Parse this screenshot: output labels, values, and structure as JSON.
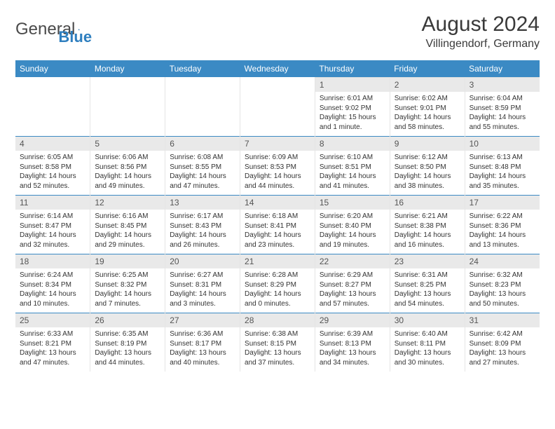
{
  "logo": {
    "text1": "General",
    "text2": "Blue"
  },
  "title": "August 2024",
  "location": "Villingendorf, Germany",
  "colors": {
    "header_bg": "#3b8ac4",
    "header_text": "#ffffff",
    "daynum_bg": "#e9e9e9",
    "border": "#e5e5e5",
    "logo_accent": "#2f7fbf"
  },
  "day_headers": [
    "Sunday",
    "Monday",
    "Tuesday",
    "Wednesday",
    "Thursday",
    "Friday",
    "Saturday"
  ],
  "weeks": [
    [
      null,
      null,
      null,
      null,
      {
        "n": "1",
        "sr": "Sunrise: 6:01 AM",
        "ss": "Sunset: 9:02 PM",
        "dl": "Daylight: 15 hours and 1 minute."
      },
      {
        "n": "2",
        "sr": "Sunrise: 6:02 AM",
        "ss": "Sunset: 9:01 PM",
        "dl": "Daylight: 14 hours and 58 minutes."
      },
      {
        "n": "3",
        "sr": "Sunrise: 6:04 AM",
        "ss": "Sunset: 8:59 PM",
        "dl": "Daylight: 14 hours and 55 minutes."
      }
    ],
    [
      {
        "n": "4",
        "sr": "Sunrise: 6:05 AM",
        "ss": "Sunset: 8:58 PM",
        "dl": "Daylight: 14 hours and 52 minutes."
      },
      {
        "n": "5",
        "sr": "Sunrise: 6:06 AM",
        "ss": "Sunset: 8:56 PM",
        "dl": "Daylight: 14 hours and 49 minutes."
      },
      {
        "n": "6",
        "sr": "Sunrise: 6:08 AM",
        "ss": "Sunset: 8:55 PM",
        "dl": "Daylight: 14 hours and 47 minutes."
      },
      {
        "n": "7",
        "sr": "Sunrise: 6:09 AM",
        "ss": "Sunset: 8:53 PM",
        "dl": "Daylight: 14 hours and 44 minutes."
      },
      {
        "n": "8",
        "sr": "Sunrise: 6:10 AM",
        "ss": "Sunset: 8:51 PM",
        "dl": "Daylight: 14 hours and 41 minutes."
      },
      {
        "n": "9",
        "sr": "Sunrise: 6:12 AM",
        "ss": "Sunset: 8:50 PM",
        "dl": "Daylight: 14 hours and 38 minutes."
      },
      {
        "n": "10",
        "sr": "Sunrise: 6:13 AM",
        "ss": "Sunset: 8:48 PM",
        "dl": "Daylight: 14 hours and 35 minutes."
      }
    ],
    [
      {
        "n": "11",
        "sr": "Sunrise: 6:14 AM",
        "ss": "Sunset: 8:47 PM",
        "dl": "Daylight: 14 hours and 32 minutes."
      },
      {
        "n": "12",
        "sr": "Sunrise: 6:16 AM",
        "ss": "Sunset: 8:45 PM",
        "dl": "Daylight: 14 hours and 29 minutes."
      },
      {
        "n": "13",
        "sr": "Sunrise: 6:17 AM",
        "ss": "Sunset: 8:43 PM",
        "dl": "Daylight: 14 hours and 26 minutes."
      },
      {
        "n": "14",
        "sr": "Sunrise: 6:18 AM",
        "ss": "Sunset: 8:41 PM",
        "dl": "Daylight: 14 hours and 23 minutes."
      },
      {
        "n": "15",
        "sr": "Sunrise: 6:20 AM",
        "ss": "Sunset: 8:40 PM",
        "dl": "Daylight: 14 hours and 19 minutes."
      },
      {
        "n": "16",
        "sr": "Sunrise: 6:21 AM",
        "ss": "Sunset: 8:38 PM",
        "dl": "Daylight: 14 hours and 16 minutes."
      },
      {
        "n": "17",
        "sr": "Sunrise: 6:22 AM",
        "ss": "Sunset: 8:36 PM",
        "dl": "Daylight: 14 hours and 13 minutes."
      }
    ],
    [
      {
        "n": "18",
        "sr": "Sunrise: 6:24 AM",
        "ss": "Sunset: 8:34 PM",
        "dl": "Daylight: 14 hours and 10 minutes."
      },
      {
        "n": "19",
        "sr": "Sunrise: 6:25 AM",
        "ss": "Sunset: 8:32 PM",
        "dl": "Daylight: 14 hours and 7 minutes."
      },
      {
        "n": "20",
        "sr": "Sunrise: 6:27 AM",
        "ss": "Sunset: 8:31 PM",
        "dl": "Daylight: 14 hours and 3 minutes."
      },
      {
        "n": "21",
        "sr": "Sunrise: 6:28 AM",
        "ss": "Sunset: 8:29 PM",
        "dl": "Daylight: 14 hours and 0 minutes."
      },
      {
        "n": "22",
        "sr": "Sunrise: 6:29 AM",
        "ss": "Sunset: 8:27 PM",
        "dl": "Daylight: 13 hours and 57 minutes."
      },
      {
        "n": "23",
        "sr": "Sunrise: 6:31 AM",
        "ss": "Sunset: 8:25 PM",
        "dl": "Daylight: 13 hours and 54 minutes."
      },
      {
        "n": "24",
        "sr": "Sunrise: 6:32 AM",
        "ss": "Sunset: 8:23 PM",
        "dl": "Daylight: 13 hours and 50 minutes."
      }
    ],
    [
      {
        "n": "25",
        "sr": "Sunrise: 6:33 AM",
        "ss": "Sunset: 8:21 PM",
        "dl": "Daylight: 13 hours and 47 minutes."
      },
      {
        "n": "26",
        "sr": "Sunrise: 6:35 AM",
        "ss": "Sunset: 8:19 PM",
        "dl": "Daylight: 13 hours and 44 minutes."
      },
      {
        "n": "27",
        "sr": "Sunrise: 6:36 AM",
        "ss": "Sunset: 8:17 PM",
        "dl": "Daylight: 13 hours and 40 minutes."
      },
      {
        "n": "28",
        "sr": "Sunrise: 6:38 AM",
        "ss": "Sunset: 8:15 PM",
        "dl": "Daylight: 13 hours and 37 minutes."
      },
      {
        "n": "29",
        "sr": "Sunrise: 6:39 AM",
        "ss": "Sunset: 8:13 PM",
        "dl": "Daylight: 13 hours and 34 minutes."
      },
      {
        "n": "30",
        "sr": "Sunrise: 6:40 AM",
        "ss": "Sunset: 8:11 PM",
        "dl": "Daylight: 13 hours and 30 minutes."
      },
      {
        "n": "31",
        "sr": "Sunrise: 6:42 AM",
        "ss": "Sunset: 8:09 PM",
        "dl": "Daylight: 13 hours and 27 minutes."
      }
    ]
  ]
}
